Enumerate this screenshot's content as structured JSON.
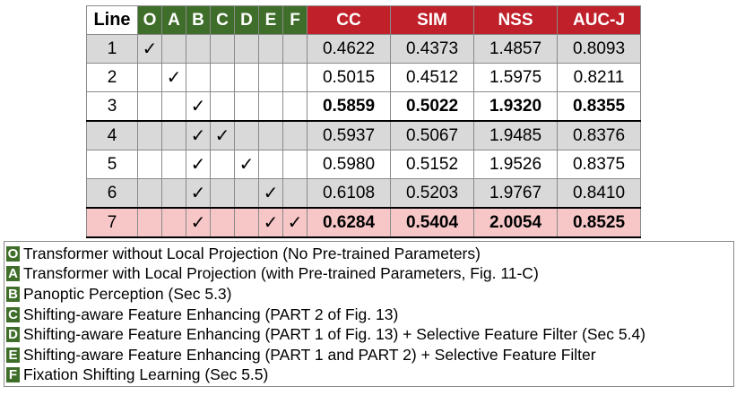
{
  "table": {
    "line_header": "Line",
    "ablation_headers": [
      "O",
      "A",
      "B",
      "C",
      "D",
      "E",
      "F"
    ],
    "metric_headers": [
      "CC",
      "SIM",
      "NSS",
      "AUC-J"
    ],
    "check_mark": "✓",
    "rows": [
      {
        "line": "1",
        "checks": [
          1,
          0,
          0,
          0,
          0,
          0,
          0
        ],
        "values": [
          "0.4622",
          "0.4373",
          "1.4857",
          "0.8093"
        ],
        "bold": false
      },
      {
        "line": "2",
        "checks": [
          0,
          1,
          0,
          0,
          0,
          0,
          0
        ],
        "values": [
          "0.5015",
          "0.4512",
          "1.5975",
          "0.8211"
        ],
        "bold": false
      },
      {
        "line": "3",
        "checks": [
          0,
          0,
          1,
          0,
          0,
          0,
          0
        ],
        "values": [
          "0.5859",
          "0.5022",
          "1.9320",
          "0.8355"
        ],
        "bold": true
      },
      {
        "line": "4",
        "checks": [
          0,
          0,
          1,
          1,
          0,
          0,
          0
        ],
        "values": [
          "0.5937",
          "0.5067",
          "1.9485",
          "0.8376"
        ],
        "bold": false
      },
      {
        "line": "5",
        "checks": [
          0,
          0,
          1,
          0,
          1,
          0,
          0
        ],
        "values": [
          "0.5980",
          "0.5152",
          "1.9526",
          "0.8375"
        ],
        "bold": false
      },
      {
        "line": "6",
        "checks": [
          0,
          0,
          1,
          0,
          0,
          1,
          0
        ],
        "values": [
          "0.6108",
          "0.5203",
          "1.9767",
          "0.8410"
        ],
        "bold": false
      },
      {
        "line": "7",
        "checks": [
          0,
          0,
          1,
          0,
          0,
          1,
          1
        ],
        "values": [
          "0.6284",
          "0.5404",
          "2.0054",
          "0.8525"
        ],
        "bold": true
      }
    ]
  },
  "legend": [
    {
      "key": "O",
      "text": "Transformer without Local Projection (No Pre-trained Parameters)"
    },
    {
      "key": "A",
      "text": "Transformer with Local Projection (with Pre-trained Parameters, Fig. 11-C)"
    },
    {
      "key": "B",
      "text": "Panoptic Perception (Sec 5.3)"
    },
    {
      "key": "C",
      "text": "Shifting-aware Feature Enhancing (PART 2 of Fig. 13)"
    },
    {
      "key": "D",
      "text": "Shifting-aware Feature Enhancing (PART 1 of Fig. 13) + Selective Feature Filter (Sec 5.4)"
    },
    {
      "key": "E",
      "text": "Shifting-aware Feature Enhancing (PART 1 and PART 2) + Selective Feature Filter"
    },
    {
      "key": "F",
      "text": "Fixation Shifting Learning (Sec 5.5)"
    }
  ],
  "colors": {
    "ablation_header": "#3f6e2a",
    "metric_header": "#c0202a",
    "gray_row": "#d9d9d9",
    "highlight_row": "#f7c7c8"
  }
}
